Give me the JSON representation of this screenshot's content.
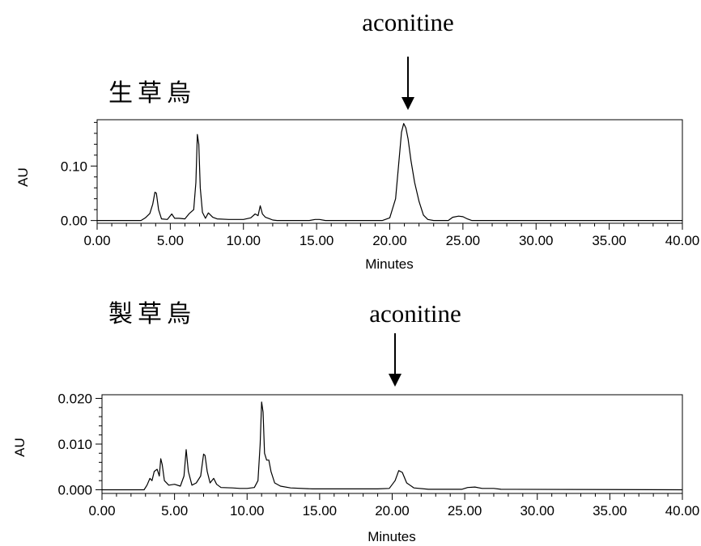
{
  "colors": {
    "trace": "#000000",
    "frame": "#000000",
    "background": "#ffffff"
  },
  "chart_data": [
    {
      "type": "line",
      "title": "生草烏",
      "xlabel": "Minutes",
      "ylabel": "AU",
      "xlim": [
        0,
        40
      ],
      "ylim": [
        -0.005,
        0.185
      ],
      "x_ticks": [
        0,
        5,
        10,
        15,
        20,
        25,
        30,
        35,
        40
      ],
      "x_tick_labels": [
        "0.00",
        "5.00",
        "10.00",
        "15.00",
        "20.00",
        "25.00",
        "30.00",
        "35.00",
        "40.00"
      ],
      "y_ticks": [
        0,
        0.1
      ],
      "y_tick_labels": [
        "0.00",
        "0.10"
      ],
      "grid": false,
      "annotation": {
        "text": "aconitine",
        "x": 21.2
      },
      "series": [
        {
          "x": [
            0,
            3.0,
            3.3,
            3.6,
            3.8,
            3.95,
            4.05,
            4.2,
            4.4,
            4.8,
            5.1,
            5.3,
            5.6,
            6.0,
            6.3,
            6.6,
            6.75,
            6.85,
            6.95,
            7.05,
            7.2,
            7.4,
            7.6,
            7.9,
            8.2,
            9.0,
            10.0,
            10.5,
            10.8,
            11.0,
            11.15,
            11.3,
            11.5,
            11.8,
            12.0,
            12.3,
            14.5,
            14.9,
            15.2,
            15.6,
            19.5,
            20.0,
            20.4,
            20.6,
            20.8,
            20.95,
            21.1,
            21.25,
            21.45,
            21.7,
            22.0,
            22.3,
            22.6,
            23.0,
            24.0,
            24.3,
            24.7,
            25.0,
            25.3,
            25.6,
            40
          ],
          "y": [
            0,
            0,
            0.005,
            0.013,
            0.03,
            0.052,
            0.05,
            0.02,
            0.003,
            0.002,
            0.012,
            0.004,
            0.004,
            0.003,
            0.013,
            0.02,
            0.07,
            0.158,
            0.14,
            0.06,
            0.015,
            0.004,
            0.014,
            0.006,
            0.003,
            0.002,
            0.002,
            0.005,
            0.012,
            0.009,
            0.027,
            0.012,
            0.006,
            0.003,
            0.001,
            0,
            0,
            0.002,
            0.002,
            0,
            0,
            0.005,
            0.04,
            0.1,
            0.162,
            0.178,
            0.17,
            0.15,
            0.11,
            0.07,
            0.035,
            0.01,
            0.002,
            0,
            0,
            0.006,
            0.008,
            0.007,
            0.003,
            0,
            0
          ]
        }
      ]
    },
    {
      "type": "line",
      "title": "製草烏",
      "xlabel": "Minutes",
      "ylabel": "AU",
      "xlim": [
        0,
        40
      ],
      "ylim": [
        -0.0008,
        0.0208
      ],
      "x_ticks": [
        0,
        5,
        10,
        15,
        20,
        25,
        30,
        35,
        40
      ],
      "x_tick_labels": [
        "0.00",
        "5.00",
        "10.00",
        "15.00",
        "20.00",
        "25.00",
        "30.00",
        "35.00",
        "40.00"
      ],
      "y_ticks": [
        0,
        0.01,
        0.02
      ],
      "y_tick_labels": [
        "0.000",
        "0.010",
        "0.020"
      ],
      "grid": false,
      "annotation": {
        "text": "aconitine",
        "x": 20.3
      },
      "series": [
        {
          "x": [
            0,
            2.9,
            3.1,
            3.3,
            3.45,
            3.6,
            3.8,
            3.95,
            4.05,
            4.15,
            4.3,
            4.6,
            5.0,
            5.4,
            5.65,
            5.8,
            5.95,
            6.2,
            6.5,
            6.8,
            7.0,
            7.1,
            7.25,
            7.45,
            7.7,
            7.9,
            8.2,
            9.0,
            9.5,
            10.0,
            10.5,
            10.75,
            10.9,
            11.0,
            11.1,
            11.2,
            11.35,
            11.5,
            11.65,
            11.9,
            12.3,
            13.0,
            14.5,
            15.5,
            17.0,
            18.0,
            19.0,
            19.8,
            20.2,
            20.45,
            20.7,
            21.0,
            21.5,
            22.5,
            24.8,
            25.2,
            25.7,
            26.2,
            27.0,
            27.5,
            40
          ],
          "y": [
            0,
            0,
            0.001,
            0.0025,
            0.002,
            0.004,
            0.0045,
            0.003,
            0.0068,
            0.0055,
            0.002,
            0.001,
            0.0012,
            0.0008,
            0.003,
            0.0088,
            0.004,
            0.001,
            0.0015,
            0.003,
            0.0078,
            0.0075,
            0.004,
            0.0015,
            0.0025,
            0.0012,
            0.0005,
            0.0004,
            0.0003,
            0.0003,
            0.0005,
            0.002,
            0.01,
            0.0192,
            0.017,
            0.008,
            0.0065,
            0.0065,
            0.004,
            0.0015,
            0.0008,
            0.0004,
            0.0002,
            0.0002,
            0.0002,
            0.0002,
            0.0002,
            0.0003,
            0.002,
            0.0042,
            0.0038,
            0.0015,
            0.0004,
            0.0001,
            0.0001,
            0.0005,
            0.0006,
            0.0003,
            0.0003,
            0.0001,
            0
          ]
        }
      ]
    }
  ]
}
